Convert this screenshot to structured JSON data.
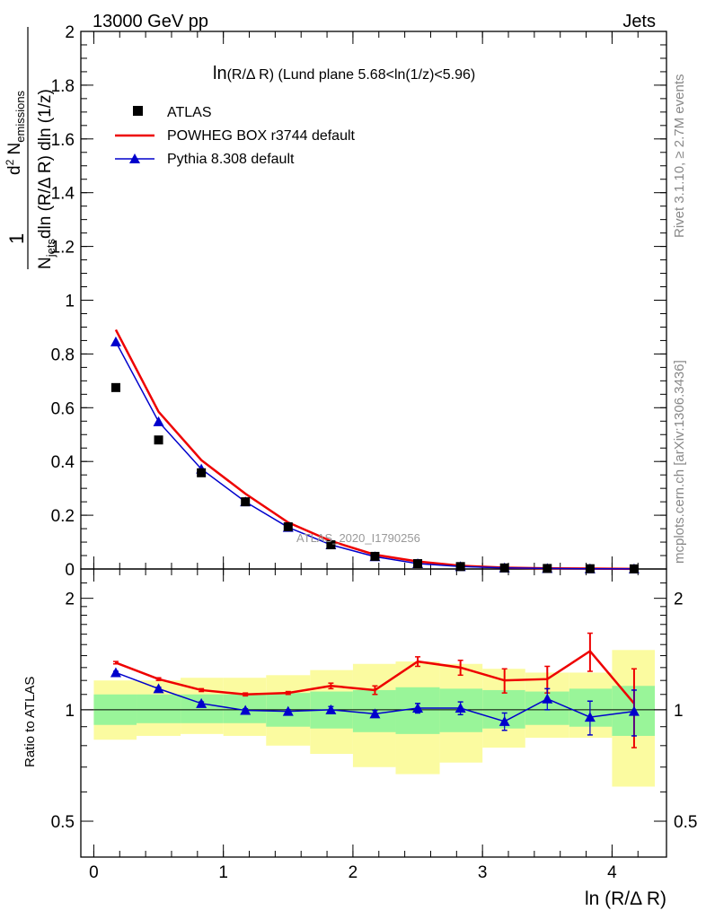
{
  "header": {
    "left": "13000 GeV pp",
    "right": "Jets",
    "rivet": "Rivet 3.1.10, ≥ 2.7M events",
    "mcplots": "mcplots.cern.ch [arXiv:1306.3436]",
    "analysis": "ATLAS_2020_I1790256"
  },
  "plot_title": {
    "part1": "ln",
    "part2": "(R/Δ R)",
    "part3": " (Lund plane 5.68<ln(1/z)<5.96)"
  },
  "ylabel_main": {
    "one": "1",
    "njets": "N",
    "njets_sub": "jets",
    "den_rest": "dln (R/Δ R) dln (1/z)",
    "num_d": "d",
    "num_exp": "2",
    "num_n": " N",
    "num_sub": "emissions"
  },
  "ylabel_ratio": "Ratio to ATLAS",
  "xlabel": "ln (R/Δ R)",
  "legend": {
    "atlas": "ATLAS",
    "powheg": "POWHEG BOX r3744 default",
    "pythia": "Pythia 8.308 default"
  },
  "colors": {
    "data": "#000000",
    "powheg": "#ee0000",
    "pythia": "#0000cc",
    "band_inner": "#99f599",
    "band_outer": "#fbfba0"
  },
  "chart_data": [
    {
      "type": "scatter",
      "panel": "main",
      "xlim": [
        -0.1,
        4.42
      ],
      "ylim": [
        0,
        2
      ],
      "y_ticks": [
        "0",
        "0.2",
        "0.4",
        "0.6",
        "0.8",
        "1",
        "1.2",
        "1.4",
        "1.6",
        "1.8",
        "2"
      ],
      "x": [
        0.17,
        0.5,
        0.83,
        1.17,
        1.5,
        1.83,
        2.17,
        2.5,
        2.83,
        3.17,
        3.5,
        3.83,
        4.17
      ],
      "series": [
        {
          "name": "ATLAS",
          "values": [
            0.675,
            0.48,
            0.358,
            0.25,
            0.157,
            0.09,
            0.047,
            0.02,
            0.009,
            0.004,
            0.002,
            0.001,
            0.0005
          ]
        },
        {
          "name": "POWHEG BOX r3744 default",
          "values": [
            0.89,
            0.585,
            0.405,
            0.28,
            0.173,
            0.104,
            0.053,
            0.028,
            0.012,
            0.005,
            0.0025,
            0.0015,
            0.0005
          ]
        },
        {
          "name": "Pythia 8.308 default",
          "values": [
            0.845,
            0.548,
            0.372,
            0.25,
            0.155,
            0.09,
            0.046,
            0.02,
            0.009,
            0.004,
            0.002,
            0.001,
            0.0005
          ]
        }
      ]
    },
    {
      "type": "line",
      "panel": "ratio",
      "log_scale": true,
      "xlim": [
        -0.1,
        4.42
      ],
      "ylim": [
        0.4,
        2.4
      ],
      "x_ticks": [
        "0",
        "1",
        "2",
        "3",
        "4"
      ],
      "y_ticks": [
        "0.5",
        "1",
        "2"
      ],
      "x_edges": [
        0,
        0.33,
        0.67,
        1.0,
        1.33,
        1.67,
        2.0,
        2.33,
        2.67,
        3.0,
        3.33,
        3.67,
        4.0,
        4.33
      ],
      "band_inner": {
        "lo": [
          0.91,
          0.92,
          0.92,
          0.92,
          0.9,
          0.89,
          0.87,
          0.86,
          0.87,
          0.89,
          0.91,
          0.9,
          0.85
        ],
        "hi": [
          1.1,
          1.1,
          1.1,
          1.1,
          1.11,
          1.12,
          1.13,
          1.15,
          1.14,
          1.13,
          1.12,
          1.14,
          1.16
        ]
      },
      "band_outer": {
        "lo": [
          0.83,
          0.85,
          0.86,
          0.85,
          0.8,
          0.76,
          0.7,
          0.67,
          0.72,
          0.79,
          0.84,
          0.84,
          0.62
        ],
        "hi": [
          1.2,
          1.2,
          1.22,
          1.22,
          1.24,
          1.28,
          1.33,
          1.35,
          1.33,
          1.29,
          1.26,
          1.26,
          1.45
        ]
      },
      "reference": 1,
      "series": [
        {
          "name": "POWHEG BOX r3744 default",
          "values": [
            1.34,
            1.21,
            1.13,
            1.1,
            1.11,
            1.16,
            1.13,
            1.35,
            1.3,
            1.2,
            1.21,
            1.44,
            1.04
          ],
          "errors": [
            0.01,
            0.01,
            0.01,
            0.01,
            0.01,
            0.02,
            0.03,
            0.04,
            0.06,
            0.09,
            0.1,
            0.17,
            0.25
          ]
        },
        {
          "name": "Pythia 8.308 default",
          "values": [
            1.26,
            1.14,
            1.04,
            0.996,
            0.99,
            1.0,
            0.975,
            1.01,
            1.01,
            0.93,
            1.07,
            0.955,
            0.99
          ],
          "errors": [
            0.01,
            0.01,
            0.01,
            0.01,
            0.01,
            0.02,
            0.02,
            0.03,
            0.04,
            0.05,
            0.07,
            0.1,
            0.14
          ]
        }
      ]
    }
  ]
}
